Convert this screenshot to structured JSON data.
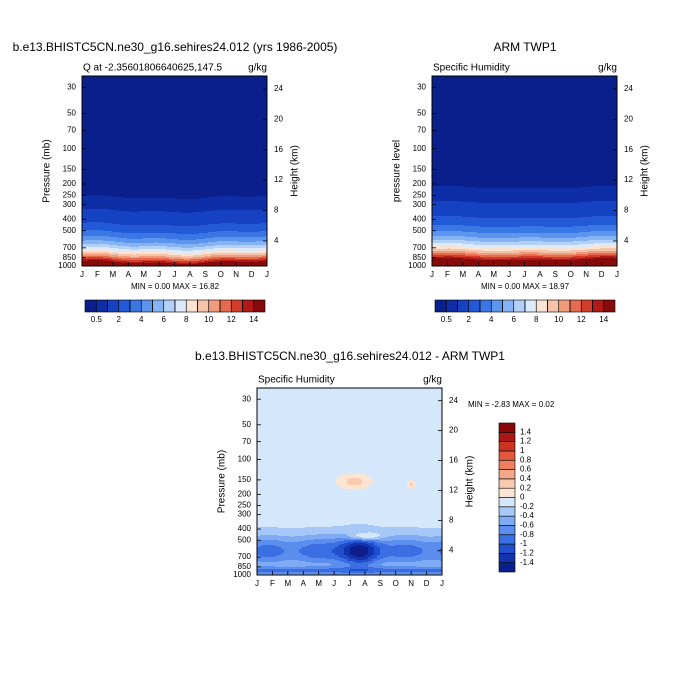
{
  "chart_data": [
    {
      "type": "contour",
      "title": "b.e13.BHISTC5CN.ne30_g16.sehires24.012 (yrs 1986-2005)",
      "left_label": "Q at -2.35601806640625,147.5",
      "units": "g/kg",
      "ylabel": "Pressure (mb)",
      "y2label": "Height (km)",
      "categories": [
        "J",
        "F",
        "M",
        "A",
        "M",
        "J",
        "J",
        "A",
        "S",
        "O",
        "N",
        "D",
        "J"
      ],
      "log_y": true,
      "ylim": [
        1000,
        24
      ],
      "yticks": [
        30,
        50,
        70,
        100,
        150,
        200,
        250,
        300,
        400,
        500,
        700,
        850,
        1000
      ],
      "y2lim": [
        0.7,
        25.7
      ],
      "y2ticks": [
        4,
        8,
        12,
        16,
        20,
        24
      ],
      "stats": "MIN =  0.00 MAX = 16.82",
      "colorbar": {
        "orientation": "horizontal",
        "levels": [
          0.5,
          1,
          2,
          3,
          4,
          5,
          6,
          7,
          8,
          9,
          10,
          11,
          12,
          13,
          14
        ],
        "colors": [
          "#0a1f8c",
          "#0d2ea6",
          "#1442c2",
          "#2159d6",
          "#3a76e4",
          "#5c95ed",
          "#86b3f4",
          "#b3d0f8",
          "#dceafb",
          "#f9e3d2",
          "#f6c3a8",
          "#f09b7b",
          "#e66a4d",
          "#d23c2a",
          "#b21a17",
          "#880b0b"
        ]
      }
    },
    {
      "type": "contour",
      "title": "ARM TWP1",
      "left_label": "Specific Humidity",
      "units": "g/kg",
      "ylabel": "pressure level",
      "y2label": "Height (km)",
      "categories": [
        "J",
        "F",
        "M",
        "A",
        "M",
        "J",
        "J",
        "A",
        "S",
        "O",
        "N",
        "D",
        "J"
      ],
      "log_y": true,
      "ylim": [
        1000,
        24
      ],
      "yticks": [
        30,
        50,
        70,
        100,
        150,
        200,
        250,
        300,
        400,
        500,
        700,
        850,
        1000
      ],
      "y2lim": [
        0.7,
        25.7
      ],
      "y2ticks": [
        4,
        8,
        12,
        16,
        20,
        24
      ],
      "stats": "MIN =  0.00 MAX = 18.97",
      "colorbar": {
        "orientation": "horizontal",
        "levels": [
          0.5,
          1,
          2,
          3,
          4,
          5,
          6,
          7,
          8,
          9,
          10,
          11,
          12,
          13,
          14
        ],
        "colors": [
          "#0a1f8c",
          "#0d2ea6",
          "#1442c2",
          "#2159d6",
          "#3a76e4",
          "#5c95ed",
          "#86b3f4",
          "#b3d0f8",
          "#dceafb",
          "#f9e3d2",
          "#f6c3a8",
          "#f09b7b",
          "#e66a4d",
          "#d23c2a",
          "#b21a17",
          "#880b0b"
        ]
      }
    },
    {
      "type": "contour",
      "title": "b.e13.BHISTC5CN.ne30_g16.sehires24.012 - ARM TWP1",
      "left_label": "Specific Humidity",
      "units": "g/kg",
      "ylabel": "Pressure (mb)",
      "y2label": "Height (km)",
      "categories": [
        "J",
        "F",
        "M",
        "A",
        "M",
        "J",
        "J",
        "A",
        "S",
        "O",
        "N",
        "D",
        "J"
      ],
      "log_y": true,
      "ylim": [
        1000,
        24
      ],
      "yticks": [
        30,
        50,
        70,
        100,
        150,
        200,
        250,
        300,
        400,
        500,
        700,
        850,
        1000
      ],
      "y2lim": [
        0.7,
        25.7
      ],
      "y2ticks": [
        4,
        8,
        12,
        16,
        20,
        24
      ],
      "stats": "MIN = -2.83 MAX =  0.02",
      "colorbar": {
        "orientation": "vertical",
        "levels": [
          -1.4,
          -1.2,
          -1,
          -0.8,
          -0.6,
          -0.4,
          -0.2,
          0,
          0.2,
          0.4,
          0.6,
          0.8,
          1,
          1.2,
          1.4
        ],
        "colors": [
          "#0a1f8c",
          "#1233ad",
          "#1f4fcd",
          "#3a6ee2",
          "#5a8ded",
          "#7eabf3",
          "#a7c7f7",
          "#d5e7fa",
          "#fbe4d2",
          "#f8caae",
          "#f4a888",
          "#ee8060",
          "#e2583c",
          "#cc3322",
          "#ab1616",
          "#870808"
        ]
      }
    }
  ]
}
